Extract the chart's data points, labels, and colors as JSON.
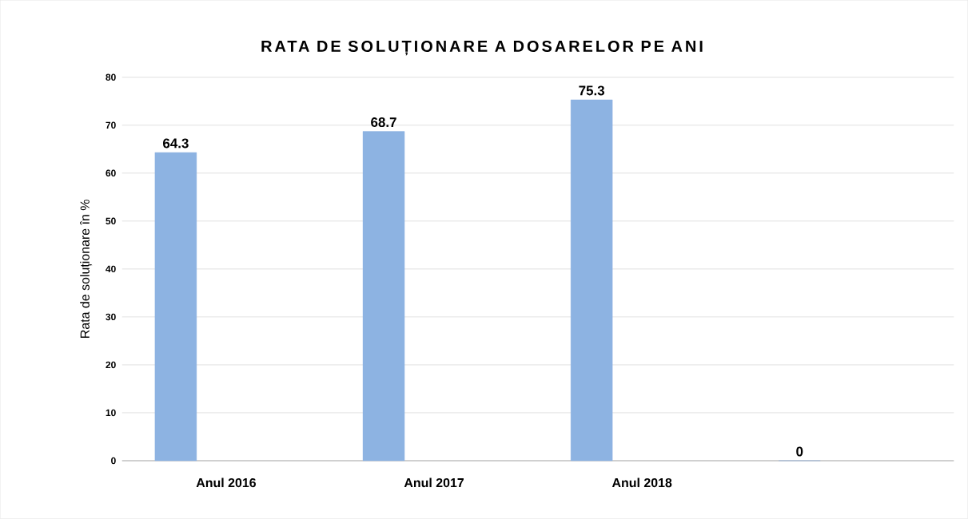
{
  "chart_data": {
    "type": "bar",
    "title": "RATA DE SOLUȚIONARE A DOSARELOR PE ANI",
    "ylabel": "Rata de soluționare în %",
    "categories": [
      "Anul 2016",
      "Anul 2017",
      "Anul 2018",
      null
    ],
    "values": [
      64.3,
      68.7,
      75.3,
      0
    ],
    "color": "#8db3e2",
    "ylim": [
      0,
      80
    ],
    "yticks": [
      0,
      10,
      20,
      30,
      40,
      50,
      60,
      70,
      80
    ],
    "grid": "y",
    "data_labels": true
  }
}
